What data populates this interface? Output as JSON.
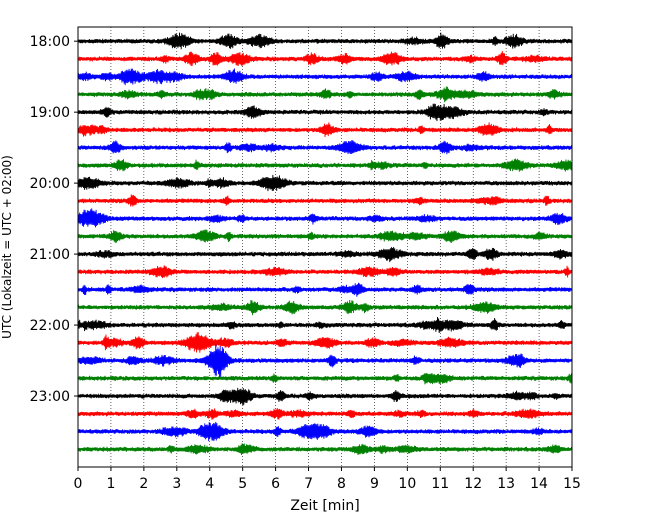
{
  "chart_data": {
    "type": "line",
    "title": "",
    "xlabel": "Zeit  [min]",
    "ylabel": "UTC (Lokalzeit = UTC + 02:00)",
    "xlim": [
      0,
      15
    ],
    "x_ticks": [
      0,
      1,
      2,
      3,
      4,
      5,
      6,
      7,
      8,
      9,
      10,
      11,
      12,
      13,
      14,
      15
    ],
    "x_tick_labels": [
      "0",
      "1",
      "2",
      "3",
      "4",
      "5",
      "6",
      "7",
      "8",
      "9",
      "10",
      "11",
      "12",
      "13",
      "14",
      "15"
    ],
    "y_range_hours": [
      17.8,
      24.0
    ],
    "y_ticks": [
      18,
      19,
      20,
      21,
      22,
      23
    ],
    "y_tick_labels": [
      "18:00",
      "19:00",
      "20:00",
      "21:00",
      "22:00",
      "23:00"
    ],
    "grid": "vertical dotted lines at each minute",
    "trace_interval_minutes": 15,
    "color_cycle": [
      "#000000",
      "#ff0000",
      "#0000ff",
      "#008000"
    ],
    "traces": [
      {
        "start": "18:00",
        "color": "#000000"
      },
      {
        "start": "18:15",
        "color": "#ff0000"
      },
      {
        "start": "18:30",
        "color": "#0000ff"
      },
      {
        "start": "18:45",
        "color": "#008000"
      },
      {
        "start": "19:00",
        "color": "#000000"
      },
      {
        "start": "19:15",
        "color": "#ff0000"
      },
      {
        "start": "19:30",
        "color": "#0000ff"
      },
      {
        "start": "19:45",
        "color": "#008000"
      },
      {
        "start": "20:00",
        "color": "#000000"
      },
      {
        "start": "20:15",
        "color": "#ff0000"
      },
      {
        "start": "20:30",
        "color": "#0000ff"
      },
      {
        "start": "20:45",
        "color": "#008000"
      },
      {
        "start": "21:00",
        "color": "#000000"
      },
      {
        "start": "21:15",
        "color": "#ff0000"
      },
      {
        "start": "21:30",
        "color": "#0000ff"
      },
      {
        "start": "21:45",
        "color": "#008000"
      },
      {
        "start": "22:00",
        "color": "#000000"
      },
      {
        "start": "22:15",
        "color": "#ff0000"
      },
      {
        "start": "22:30",
        "color": "#0000ff"
      },
      {
        "start": "22:45",
        "color": "#008000"
      },
      {
        "start": "23:00",
        "color": "#000000"
      },
      {
        "start": "23:15",
        "color": "#ff0000"
      },
      {
        "start": "23:30",
        "color": "#0000ff"
      },
      {
        "start": "23:45",
        "color": "#008000"
      }
    ]
  }
}
